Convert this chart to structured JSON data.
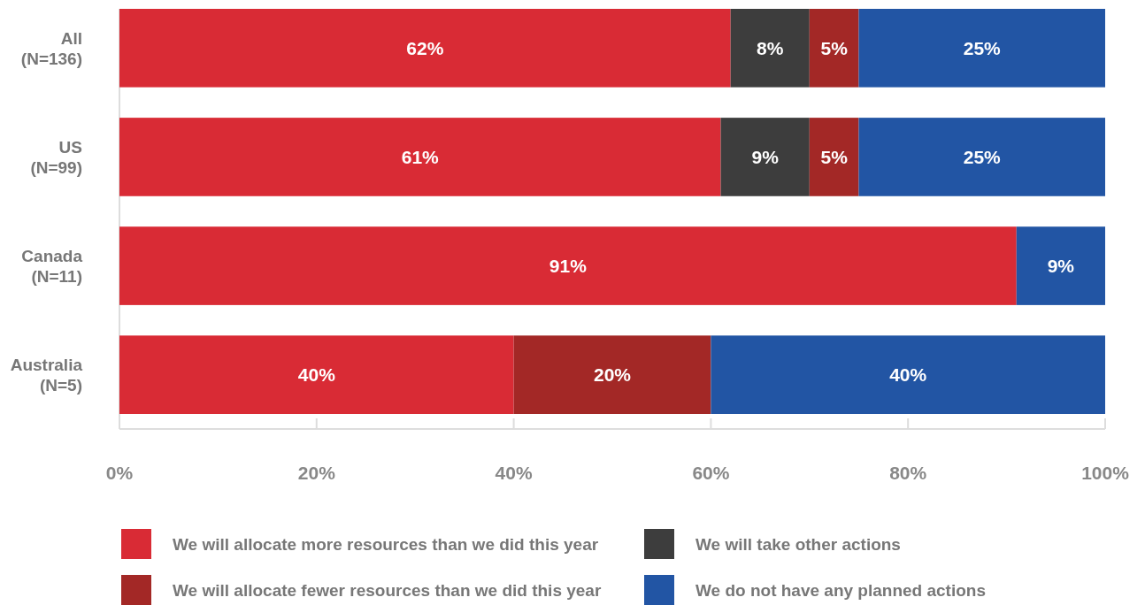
{
  "chart_data": {
    "type": "bar",
    "orientation": "horizontal",
    "stacked": true,
    "categories": [
      "All (N=136)",
      "US (N=99)",
      "Canada (N=11)",
      "Australia (N=5)"
    ],
    "series": [
      {
        "name": "We will allocate more resources than we did this year",
        "color": "#d92b35",
        "values": [
          62,
          61,
          91,
          40
        ],
        "value_labels": [
          "62%",
          "61%",
          "91%",
          "40%"
        ]
      },
      {
        "name": "We will take other actions",
        "color": "#3d3d3d",
        "values": [
          8,
          9,
          null,
          null
        ],
        "value_labels": [
          "8%",
          "9%",
          null,
          null
        ]
      },
      {
        "name": "We will allocate fewer resources than we did this year",
        "color": "#a32826",
        "values": [
          5,
          5,
          null,
          20
        ],
        "value_labels": [
          "5%",
          "5%",
          null,
          "20%"
        ]
      },
      {
        "name": "We do not have any planned actions",
        "color": "#2255a4",
        "values": [
          25,
          25,
          9,
          40
        ],
        "value_labels": [
          "25%",
          "25%",
          "9%",
          "40%"
        ]
      }
    ],
    "xlim": [
      0,
      100
    ],
    "xticks": [
      {
        "value": 0,
        "label": "0%"
      },
      {
        "value": 20,
        "label": "20%"
      },
      {
        "value": 40,
        "label": "40%"
      },
      {
        "value": 60,
        "label": "60%"
      },
      {
        "value": 80,
        "label": "80%"
      },
      {
        "value": 100,
        "label": "100%"
      }
    ],
    "grid": false,
    "legend": "bottom"
  }
}
